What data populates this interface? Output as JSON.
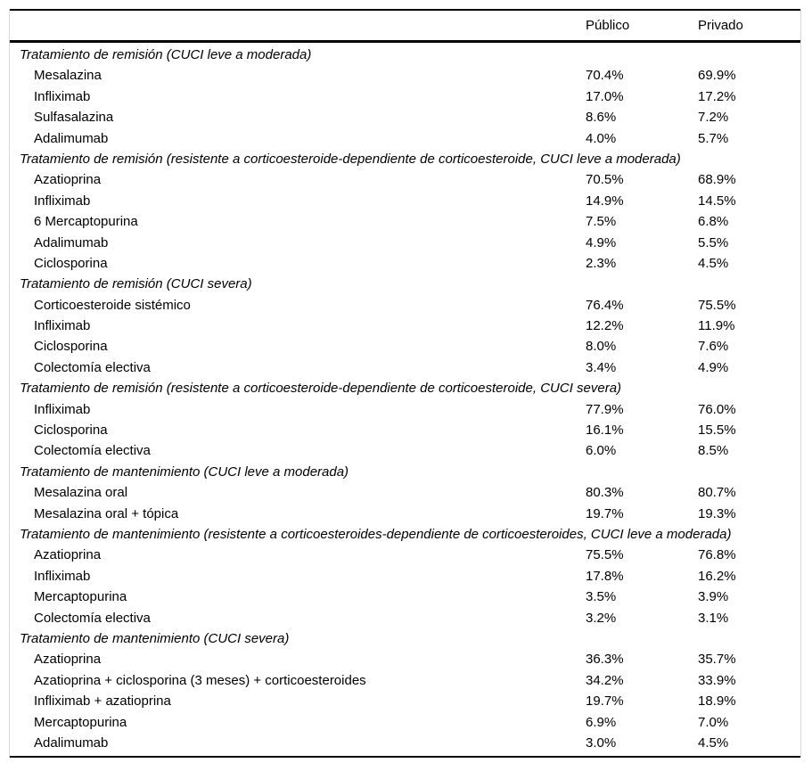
{
  "table": {
    "header": {
      "name": "",
      "publico": "Público",
      "privado": "Privado"
    },
    "sections": [
      {
        "title": "Tratamiento de remisión (CUCI leve a moderada)",
        "rows": [
          {
            "label": "Mesalazina",
            "publico": "70.4%",
            "privado": "69.9%"
          },
          {
            "label": "Infliximab",
            "publico": "17.0%",
            "privado": "17.2%"
          },
          {
            "label": "Sulfasalazina",
            "publico": "8.6%",
            "privado": "7.2%"
          },
          {
            "label": "Adalimumab",
            "publico": "4.0%",
            "privado": "5.7%"
          }
        ]
      },
      {
        "title": "Tratamiento de remisión (resistente a corticoesteroide-dependiente de corticoesteroide, CUCI leve a moderada)",
        "rows": [
          {
            "label": "Azatioprina",
            "publico": "70.5%",
            "privado": "68.9%"
          },
          {
            "label": "Infliximab",
            "publico": "14.9%",
            "privado": "14.5%"
          },
          {
            "label": "6 Mercaptopurina",
            "publico": "7.5%",
            "privado": "6.8%"
          },
          {
            "label": "Adalimumab",
            "publico": "4.9%",
            "privado": "5.5%"
          },
          {
            "label": "Ciclosporina",
            "publico": "2.3%",
            "privado": "4.5%"
          }
        ]
      },
      {
        "title": "Tratamiento de remisión (CUCI severa)",
        "rows": [
          {
            "label": "Corticoesteroide sistémico",
            "publico": "76.4%",
            "privado": "75.5%"
          },
          {
            "label": "Infliximab",
            "publico": "12.2%",
            "privado": "11.9%"
          },
          {
            "label": "Ciclosporina",
            "publico": "8.0%",
            "privado": "7.6%"
          },
          {
            "label": "Colectomía electiva",
            "publico": "3.4%",
            "privado": "4.9%"
          }
        ]
      },
      {
        "title": "Tratamiento de remisión (resistente a corticoesteroide-dependiente de corticoesteroide, CUCI severa)",
        "rows": [
          {
            "label": "Infliximab",
            "publico": "77.9%",
            "privado": "76.0%"
          },
          {
            "label": "Ciclosporina",
            "publico": "16.1%",
            "privado": "15.5%"
          },
          {
            "label": "Colectomía electiva",
            "publico": "6.0%",
            "privado": "8.5%"
          }
        ]
      },
      {
        "title": "Tratamiento de mantenimiento (CUCI leve a moderada)",
        "rows": [
          {
            "label": "Mesalazina oral",
            "publico": "80.3%",
            "privado": "80.7%"
          },
          {
            "label": "Mesalazina oral + tópica",
            "publico": "19.7%",
            "privado": "19.3%"
          }
        ]
      },
      {
        "title": "Tratamiento de mantenimiento (resistente a corticoesteroides-dependiente de corticoesteroides, CUCI leve a moderada)",
        "rows": [
          {
            "label": "Azatioprina",
            "publico": "75.5%",
            "privado": "76.8%"
          },
          {
            "label": "Infliximab",
            "publico": "17.8%",
            "privado": "16.2%"
          },
          {
            "label": "Mercaptopurina",
            "publico": "3.5%",
            "privado": "3.9%"
          },
          {
            "label": "Colectomía electiva",
            "publico": "3.2%",
            "privado": "3.1%"
          }
        ]
      },
      {
        "title": "Tratamiento de mantenimiento (CUCI severa)",
        "rows": [
          {
            "label": "Azatioprina",
            "publico": "36.3%",
            "privado": "35.7%"
          },
          {
            "label": "Azatioprina + ciclosporina (3 meses) + corticoesteroides",
            "publico": "34.2%",
            "privado": "33.9%"
          },
          {
            "label": "Infliximab + azatioprina",
            "publico": "19.7%",
            "privado": "18.9%"
          },
          {
            "label": "Mercaptopurina",
            "publico": "6.9%",
            "privado": "7.0%"
          },
          {
            "label": "Adalimumab",
            "publico": "3.0%",
            "privado": "4.5%"
          }
        ]
      }
    ],
    "colors": {
      "text": "#000000",
      "rule": "#000000",
      "side_border": "#d9d9d9",
      "background": "#ffffff"
    }
  }
}
